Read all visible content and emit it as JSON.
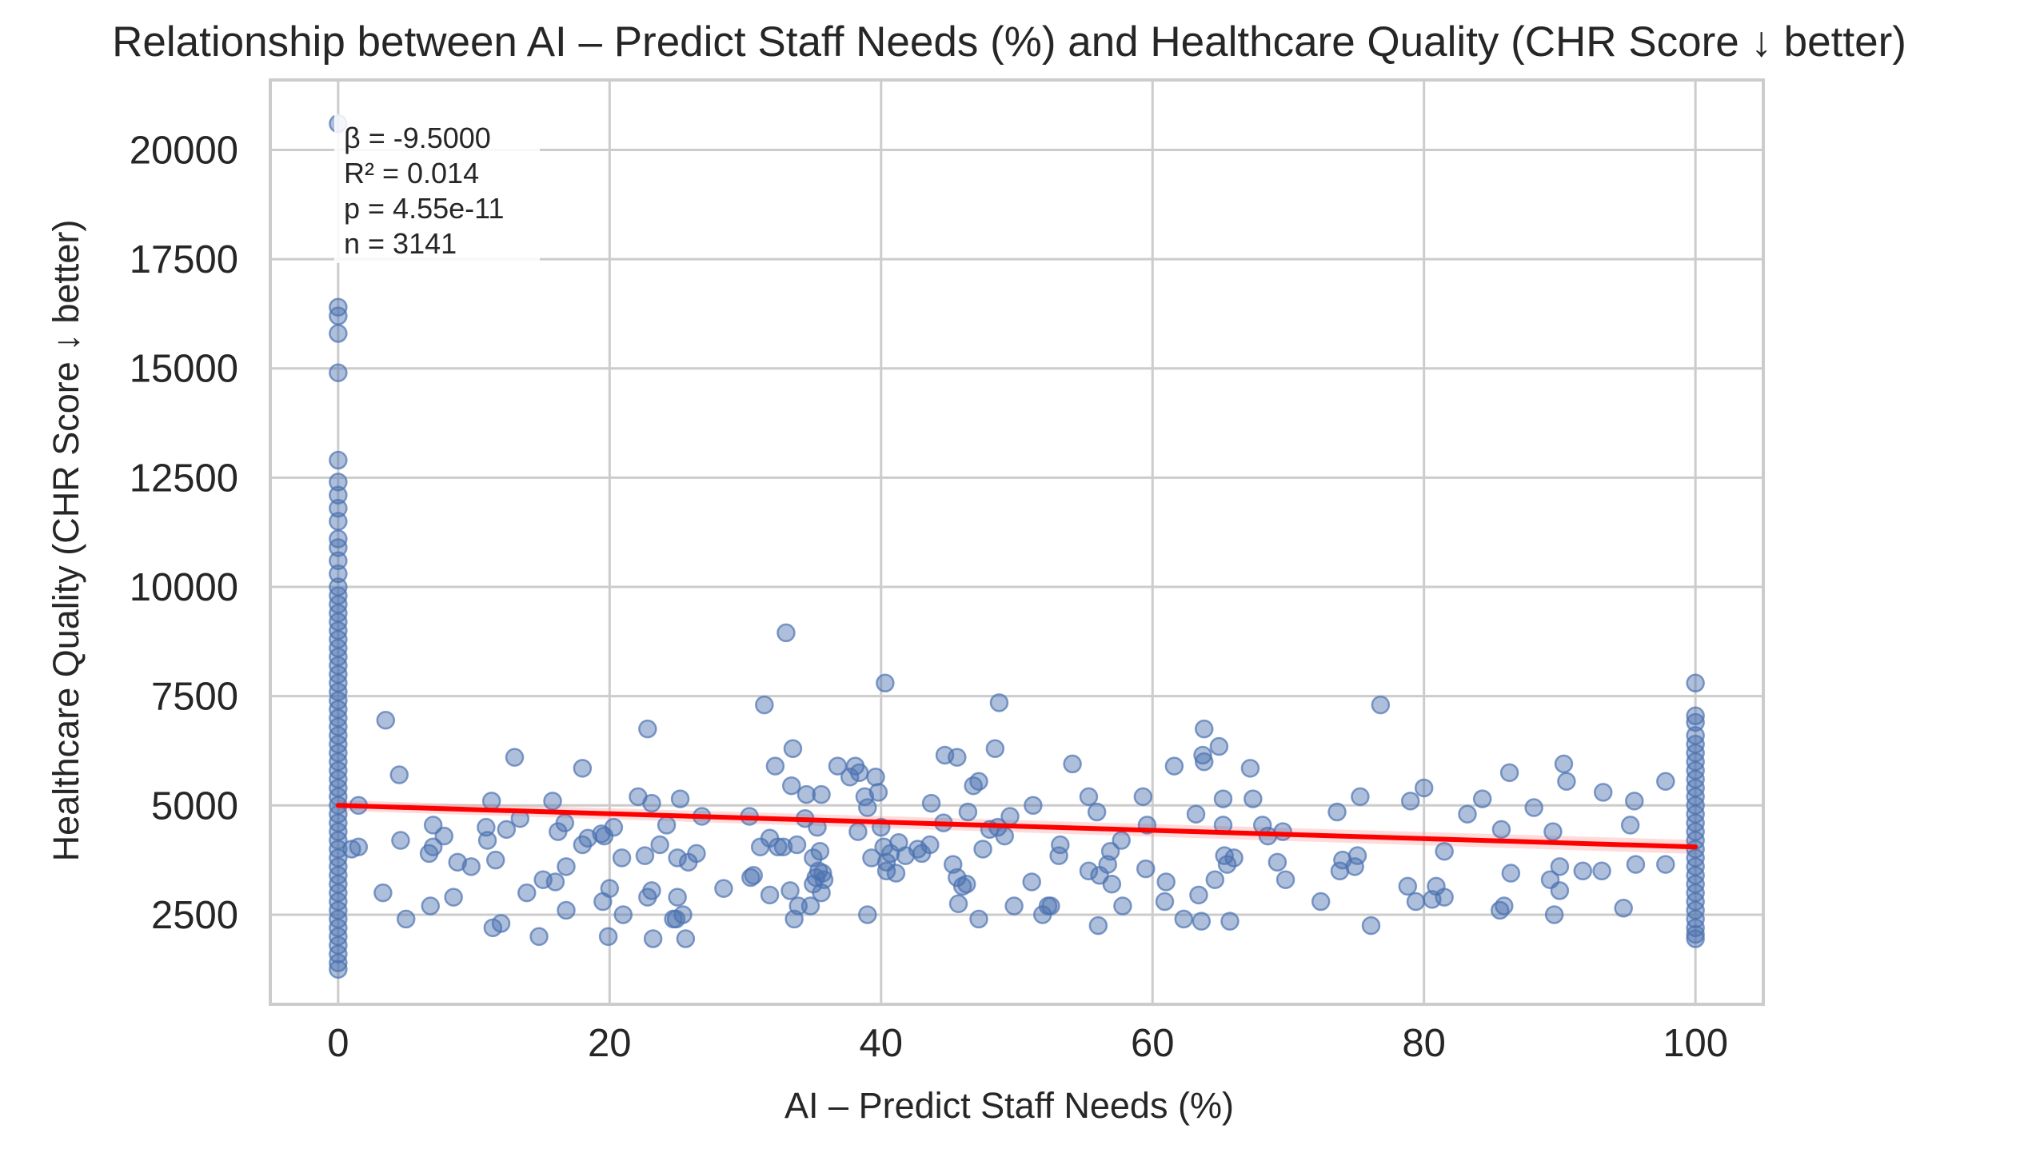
{
  "chart_data": {
    "type": "scatter",
    "title": "Relationship between AI – Predict Staff Needs (%) and Healthcare Quality (CHR Score ↓ better)",
    "xlabel": "AI – Predict Staff Needs (%)",
    "ylabel": "Healthcare Quality (CHR Score ↓ better)",
    "xlim": [
      -5,
      105
    ],
    "ylim": [
      450,
      21600
    ],
    "xticks": [
      0,
      20,
      40,
      60,
      80,
      100
    ],
    "yticks": [
      2500,
      5000,
      7500,
      10000,
      12500,
      15000,
      17500,
      20000
    ],
    "grid": true,
    "colors": {
      "points": "#4c72b0",
      "fit_line": "#ff0000",
      "grid": "#cccccc"
    },
    "stats": [
      "β = -9.5000",
      "R² = 0.014",
      "p = 4.55e-11",
      "n = 3141"
    ],
    "regression": {
      "intercept": 5000,
      "slope": -9.5,
      "x_range": [
        0,
        100
      ]
    },
    "points": [
      [
        0,
        20600
      ],
      [
        0,
        16400
      ],
      [
        0,
        16200
      ],
      [
        0,
        15800
      ],
      [
        0,
        14900
      ],
      [
        0,
        12900
      ],
      [
        0,
        12400
      ],
      [
        0,
        12100
      ],
      [
        0,
        11800
      ],
      [
        0,
        11500
      ],
      [
        0,
        11100
      ],
      [
        0,
        10900
      ],
      [
        0,
        10600
      ],
      [
        0,
        10300
      ],
      [
        0,
        10000
      ],
      [
        0,
        9800
      ],
      [
        0,
        9600
      ],
      [
        0,
        9400
      ],
      [
        0,
        9200
      ],
      [
        0,
        9000
      ],
      [
        0,
        8800
      ],
      [
        0,
        8600
      ],
      [
        0,
        8400
      ],
      [
        0,
        8200
      ],
      [
        0,
        8000
      ],
      [
        0,
        7800
      ],
      [
        0,
        7600
      ],
      [
        0,
        7400
      ],
      [
        0,
        7200
      ],
      [
        0,
        7000
      ],
      [
        0,
        6800
      ],
      [
        0,
        6600
      ],
      [
        0,
        6400
      ],
      [
        0,
        6200
      ],
      [
        0,
        6000
      ],
      [
        0,
        5800
      ],
      [
        0,
        5600
      ],
      [
        0,
        5400
      ],
      [
        0,
        5200
      ],
      [
        0,
        5000
      ],
      [
        0,
        4800
      ],
      [
        0,
        4600
      ],
      [
        0,
        4400
      ],
      [
        0,
        4200
      ],
      [
        0,
        4000
      ],
      [
        0,
        3800
      ],
      [
        0,
        3600
      ],
      [
        0,
        3400
      ],
      [
        0,
        3200
      ],
      [
        0,
        3000
      ],
      [
        0,
        2800
      ],
      [
        0,
        2600
      ],
      [
        0,
        2400
      ],
      [
        0,
        2200
      ],
      [
        0,
        2000
      ],
      [
        0,
        1800
      ],
      [
        0,
        1600
      ],
      [
        0,
        1400
      ],
      [
        0,
        1250
      ],
      [
        1.5,
        5000
      ],
      [
        1.5,
        4050
      ],
      [
        1,
        4000
      ],
      [
        3.5,
        6950
      ],
      [
        3.3,
        3000
      ],
      [
        4.5,
        5700
      ],
      [
        4.6,
        4200
      ],
      [
        5,
        2400
      ],
      [
        6.8,
        2700
      ],
      [
        6.7,
        3900
      ],
      [
        7,
        4050
      ],
      [
        7,
        4550
      ],
      [
        7.8,
        4300
      ],
      [
        8.5,
        2900
      ],
      [
        8.8,
        3700
      ],
      [
        9.8,
        3600
      ],
      [
        10.9,
        4500
      ],
      [
        11,
        4200
      ],
      [
        11.3,
        5100
      ],
      [
        11.6,
        3750
      ],
      [
        11.4,
        2200
      ],
      [
        12,
        2300
      ],
      [
        12.4,
        4450
      ],
      [
        13,
        6100
      ],
      [
        13.4,
        4700
      ],
      [
        13.9,
        3000
      ],
      [
        14.8,
        2000
      ],
      [
        15.1,
        3300
      ],
      [
        15.8,
        5100
      ],
      [
        16,
        3250
      ],
      [
        16.2,
        4400
      ],
      [
        16.7,
        4600
      ],
      [
        16.8,
        3600
      ],
      [
        16.8,
        2600
      ],
      [
        18,
        5850
      ],
      [
        18,
        4100
      ],
      [
        18.4,
        4250
      ],
      [
        19.5,
        2800
      ],
      [
        19.4,
        4350
      ],
      [
        19.6,
        4300
      ],
      [
        19.9,
        2000
      ],
      [
        20,
        3100
      ],
      [
        20.3,
        4500
      ],
      [
        20.9,
        3800
      ],
      [
        21,
        2500
      ],
      [
        22.1,
        5200
      ],
      [
        22.6,
        3850
      ],
      [
        22.8,
        6750
      ],
      [
        22.8,
        2900
      ],
      [
        23.1,
        3050
      ],
      [
        23.2,
        1950
      ],
      [
        23.1,
        5050
      ],
      [
        23.7,
        4100
      ],
      [
        24.2,
        4550
      ],
      [
        24.7,
        2400
      ],
      [
        24.9,
        2400
      ],
      [
        25,
        3800
      ],
      [
        25,
        2900
      ],
      [
        25.2,
        5150
      ],
      [
        25.4,
        2500
      ],
      [
        25.6,
        1950
      ],
      [
        25.8,
        3700
      ],
      [
        26.4,
        3900
      ],
      [
        26.8,
        4750
      ],
      [
        28.4,
        3100
      ],
      [
        30.3,
        4750
      ],
      [
        30.4,
        3350
      ],
      [
        30.6,
        3400
      ],
      [
        31.1,
        4050
      ],
      [
        31.4,
        7300
      ],
      [
        31.8,
        2950
      ],
      [
        31.8,
        4250
      ],
      [
        32.2,
        5900
      ],
      [
        32.4,
        4050
      ],
      [
        32.8,
        4050
      ],
      [
        33.3,
        3050
      ],
      [
        33.4,
        5450
      ],
      [
        33.5,
        6300
      ],
      [
        33.6,
        2400
      ],
      [
        33.8,
        4100
      ],
      [
        33.9,
        2700
      ],
      [
        34.4,
        4700
      ],
      [
        34.5,
        5250
      ],
      [
        34.8,
        2700
      ],
      [
        35,
        3200
      ],
      [
        35,
        3800
      ],
      [
        35.2,
        3350
      ],
      [
        35.3,
        4500
      ],
      [
        35.4,
        3500
      ],
      [
        35.5,
        3950
      ],
      [
        35.6,
        3000
      ],
      [
        35.6,
        5250
      ],
      [
        35.7,
        3450
      ],
      [
        35.8,
        3300
      ],
      [
        33,
        8950
      ],
      [
        36.8,
        5900
      ],
      [
        37.7,
        5650
      ],
      [
        38.1,
        5900
      ],
      [
        38.3,
        4400
      ],
      [
        38.4,
        5750
      ],
      [
        38.8,
        5200
      ],
      [
        39,
        2500
      ],
      [
        39,
        4950
      ],
      [
        39.3,
        3800
      ],
      [
        39.6,
        5650
      ],
      [
        39.8,
        5300
      ],
      [
        40,
        4500
      ],
      [
        40.2,
        4050
      ],
      [
        40.3,
        7800
      ],
      [
        40.4,
        3700
      ],
      [
        40.4,
        3500
      ],
      [
        40.7,
        3900
      ],
      [
        41.1,
        3450
      ],
      [
        41.3,
        4150
      ],
      [
        41.8,
        3850
      ],
      [
        42.7,
        4000
      ],
      [
        43,
        3900
      ],
      [
        43.6,
        4100
      ],
      [
        43.7,
        5050
      ],
      [
        44.6,
        4600
      ],
      [
        44.7,
        6150
      ],
      [
        45.3,
        3650
      ],
      [
        45.6,
        3350
      ],
      [
        45.6,
        6100
      ],
      [
        45.7,
        2750
      ],
      [
        46,
        3150
      ],
      [
        46.4,
        4850
      ],
      [
        46.3,
        3200
      ],
      [
        46.8,
        5450
      ],
      [
        47.2,
        5550
      ],
      [
        47.2,
        2400
      ],
      [
        47.5,
        4000
      ],
      [
        48,
        4450
      ],
      [
        48.4,
        6300
      ],
      [
        48.6,
        4500
      ],
      [
        48.7,
        7350
      ],
      [
        49.1,
        4300
      ],
      [
        49.5,
        4750
      ],
      [
        49.8,
        2700
      ],
      [
        51.1,
        3250
      ],
      [
        51.2,
        5000
      ],
      [
        51.9,
        2500
      ],
      [
        52.3,
        2700
      ],
      [
        52.5,
        2700
      ],
      [
        53.1,
        3850
      ],
      [
        53.2,
        4100
      ],
      [
        54.1,
        5950
      ],
      [
        55.3,
        3500
      ],
      [
        55.3,
        5200
      ],
      [
        55.9,
        4850
      ],
      [
        56,
        2250
      ],
      [
        56.1,
        3400
      ],
      [
        56.7,
        3650
      ],
      [
        56.9,
        3950
      ],
      [
        57,
        3200
      ],
      [
        57.7,
        4200
      ],
      [
        57.8,
        2700
      ],
      [
        59.3,
        5200
      ],
      [
        59.5,
        3550
      ],
      [
        59.6,
        4550
      ],
      [
        60.9,
        2800
      ],
      [
        61,
        3250
      ],
      [
        61.6,
        5900
      ],
      [
        62.3,
        2400
      ],
      [
        63.2,
        4800
      ],
      [
        63.4,
        2950
      ],
      [
        63.6,
        2350
      ],
      [
        63.7,
        6150
      ],
      [
        63.8,
        6750
      ],
      [
        63.8,
        6000
      ],
      [
        64.6,
        3300
      ],
      [
        64.9,
        6350
      ],
      [
        65.2,
        5150
      ],
      [
        65.2,
        4550
      ],
      [
        65.3,
        3850
      ],
      [
        65.5,
        3650
      ],
      [
        65.7,
        2350
      ],
      [
        66,
        3800
      ],
      [
        67.2,
        5850
      ],
      [
        67.4,
        5150
      ],
      [
        68.1,
        4550
      ],
      [
        68.5,
        4300
      ],
      [
        69.2,
        3700
      ],
      [
        69.6,
        4400
      ],
      [
        69.8,
        3300
      ],
      [
        72.4,
        2800
      ],
      [
        73.6,
        4850
      ],
      [
        73.8,
        3500
      ],
      [
        74,
        3750
      ],
      [
        74.9,
        3600
      ],
      [
        75.1,
        3850
      ],
      [
        75.3,
        5200
      ],
      [
        76.1,
        2250
      ],
      [
        76.8,
        7300
      ],
      [
        78.8,
        3150
      ],
      [
        79,
        5100
      ],
      [
        79.4,
        2800
      ],
      [
        80,
        5400
      ],
      [
        80.6,
        2850
      ],
      [
        80.9,
        3150
      ],
      [
        81.5,
        3950
      ],
      [
        81.5,
        2900
      ],
      [
        83.2,
        4800
      ],
      [
        84.3,
        5150
      ],
      [
        85.6,
        2600
      ],
      [
        85.7,
        4450
      ],
      [
        85.9,
        2700
      ],
      [
        86.3,
        5750
      ],
      [
        86.4,
        3450
      ],
      [
        88.1,
        4950
      ],
      [
        89.3,
        3300
      ],
      [
        89.6,
        2500
      ],
      [
        89.5,
        4400
      ],
      [
        90,
        3600
      ],
      [
        90.3,
        5950
      ],
      [
        90,
        3050
      ],
      [
        90.5,
        5550
      ],
      [
        91.7,
        3500
      ],
      [
        93.2,
        5300
      ],
      [
        93.1,
        3500
      ],
      [
        94.7,
        2650
      ],
      [
        95.2,
        4550
      ],
      [
        95.5,
        5100
      ],
      [
        95.6,
        3650
      ],
      [
        97.8,
        5550
      ],
      [
        97.8,
        3650
      ],
      [
        100,
        7800
      ],
      [
        100,
        7050
      ],
      [
        100,
        6900
      ],
      [
        100,
        6600
      ],
      [
        100,
        6400
      ],
      [
        100,
        6200
      ],
      [
        100,
        6000
      ],
      [
        100,
        5800
      ],
      [
        100,
        5600
      ],
      [
        100,
        5400
      ],
      [
        100,
        5200
      ],
      [
        100,
        5000
      ],
      [
        100,
        4800
      ],
      [
        100,
        4600
      ],
      [
        100,
        4400
      ],
      [
        100,
        4200
      ],
      [
        100,
        4000
      ],
      [
        100,
        3800
      ],
      [
        100,
        3600
      ],
      [
        100,
        3400
      ],
      [
        100,
        3200
      ],
      [
        100,
        3000
      ],
      [
        100,
        2800
      ],
      [
        100,
        2600
      ],
      [
        100,
        2400
      ],
      [
        100,
        2200
      ],
      [
        100,
        2050
      ],
      [
        100,
        1950
      ]
    ]
  }
}
